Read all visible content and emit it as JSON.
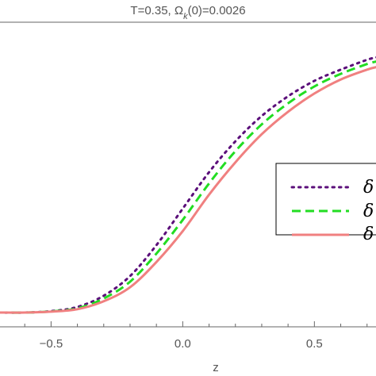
{
  "chart_data": {
    "type": "line",
    "title": "T=0.35, Ω_k(0)=0.0026",
    "title_main": "T=0.35, Ω",
    "title_sub": "k",
    "title_tail": "(0)=0.0026",
    "xlabel": "z",
    "ylabel": "",
    "xlim": [
      -0.7,
      0.74
    ],
    "ylim": [
      0,
      1
    ],
    "x_ticks": [
      {
        "value": -0.5,
        "label": "−0.5"
      },
      {
        "value": 0.0,
        "label": "0.0"
      },
      {
        "value": 0.5,
        "label": "0.5"
      }
    ],
    "grid": false,
    "legend_position": "right",
    "series": [
      {
        "name": "δ",
        "color": "#5b0f7a",
        "style": "dotted",
        "points": [
          [
            -0.7,
            0.0
          ],
          [
            -0.6,
            0.0
          ],
          [
            -0.5,
            0.005
          ],
          [
            -0.4,
            0.02
          ],
          [
            -0.3,
            0.06
          ],
          [
            -0.2,
            0.13
          ],
          [
            -0.1,
            0.24
          ],
          [
            0.0,
            0.37
          ],
          [
            0.1,
            0.5
          ],
          [
            0.2,
            0.61
          ],
          [
            0.3,
            0.7
          ],
          [
            0.4,
            0.77
          ],
          [
            0.5,
            0.825
          ],
          [
            0.6,
            0.865
          ],
          [
            0.7,
            0.9
          ],
          [
            0.74,
            0.91
          ]
        ]
      },
      {
        "name": "δ",
        "color": "#22dd22",
        "style": "dashed",
        "points": [
          [
            -0.7,
            0.0
          ],
          [
            -0.6,
            0.0
          ],
          [
            -0.5,
            0.004
          ],
          [
            -0.4,
            0.015
          ],
          [
            -0.3,
            0.05
          ],
          [
            -0.2,
            0.11
          ],
          [
            -0.1,
            0.21
          ],
          [
            0.0,
            0.33
          ],
          [
            0.1,
            0.46
          ],
          [
            0.2,
            0.575
          ],
          [
            0.3,
            0.67
          ],
          [
            0.4,
            0.745
          ],
          [
            0.5,
            0.805
          ],
          [
            0.6,
            0.85
          ],
          [
            0.7,
            0.885
          ],
          [
            0.74,
            0.895
          ]
        ]
      },
      {
        "name": "δ",
        "color": "#f08080",
        "style": "solid",
        "points": [
          [
            -0.7,
            0.0
          ],
          [
            -0.6,
            0.0
          ],
          [
            -0.5,
            0.003
          ],
          [
            -0.4,
            0.012
          ],
          [
            -0.3,
            0.04
          ],
          [
            -0.2,
            0.09
          ],
          [
            -0.1,
            0.18
          ],
          [
            0.0,
            0.29
          ],
          [
            0.1,
            0.42
          ],
          [
            0.2,
            0.535
          ],
          [
            0.3,
            0.635
          ],
          [
            0.4,
            0.715
          ],
          [
            0.5,
            0.78
          ],
          [
            0.6,
            0.83
          ],
          [
            0.7,
            0.865
          ],
          [
            0.74,
            0.875
          ]
        ]
      }
    ]
  }
}
